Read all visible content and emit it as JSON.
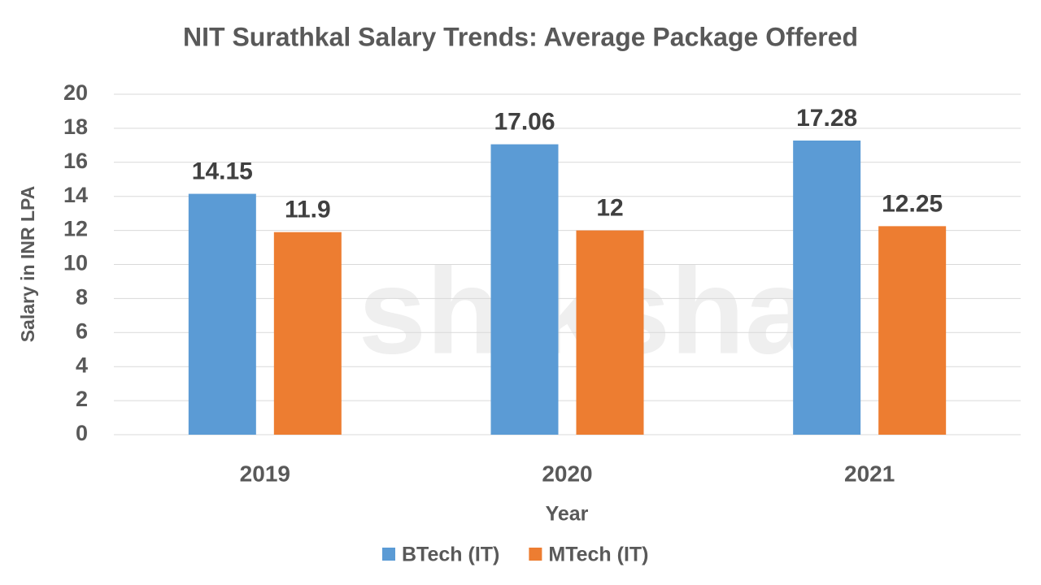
{
  "chart_data": {
    "type": "bar",
    "title": "NIT Surathkal Salary Trends: Average Package Offered",
    "watermark": "shiksha",
    "x_label": "Year",
    "y_label": "Salary in INR LPA",
    "categories": [
      "2019",
      "2020",
      "2021"
    ],
    "series": [
      {
        "name": "BTech (IT)",
        "color": "#5b9bd5",
        "values": [
          14.15,
          17.06,
          17.28
        ]
      },
      {
        "name": "MTech (IT)",
        "color": "#ed7d31",
        "values": [
          11.9,
          12,
          12.25
        ]
      }
    ],
    "ylim": [
      0,
      20
    ],
    "yticks": [
      0,
      2,
      4,
      6,
      8,
      10,
      12,
      14,
      16,
      18,
      20
    ],
    "grid": true,
    "legend": "bottom"
  }
}
